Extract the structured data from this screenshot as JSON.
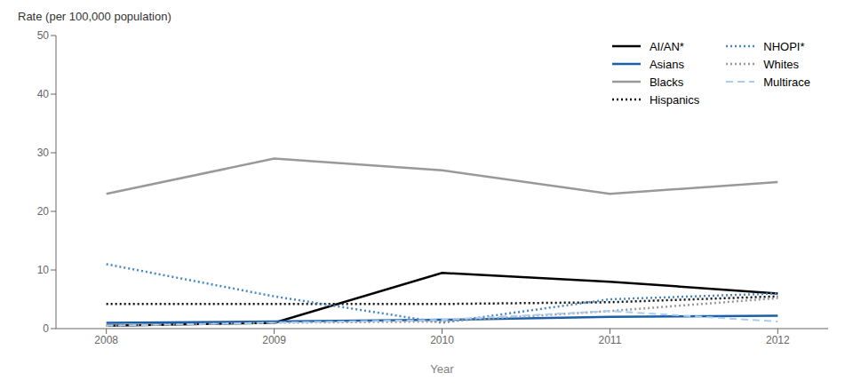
{
  "chart_data": {
    "type": "line",
    "xlabel": "Year",
    "ylabel": "Rate (per 100,000 population)",
    "x": [
      2008,
      2009,
      2010,
      2011,
      2012
    ],
    "xlim": [
      2007.7,
      2012.3
    ],
    "xticks": [
      2008,
      2009,
      2010,
      2011,
      2012
    ],
    "ylim": [
      0,
      50
    ],
    "yticks": [
      0,
      10,
      20,
      30,
      40,
      50
    ],
    "grid": false,
    "legend": "upper right",
    "series": [
      {
        "name": "AI/AN*",
        "color": "#000000",
        "line_style": "solid",
        "values": [
          0.5,
          1.0,
          9.5,
          8.0,
          6.0
        ]
      },
      {
        "name": "Asians",
        "color": "#1a5fa8",
        "line_style": "solid",
        "values": [
          1.0,
          1.2,
          1.5,
          2.0,
          2.2
        ]
      },
      {
        "name": "Blacks",
        "color": "#999999",
        "line_style": "solid",
        "values": [
          23.0,
          29.0,
          27.0,
          23.0,
          25.0
        ]
      },
      {
        "name": "Hispanics",
        "color": "#111111",
        "line_style": "dotted",
        "values": [
          4.2,
          4.2,
          4.2,
          4.5,
          5.5
        ]
      },
      {
        "name": "NHOPI*",
        "color": "#4488cc",
        "line_style": "dotted",
        "values": [
          11.0,
          5.5,
          1.0,
          5.0,
          6.0
        ]
      },
      {
        "name": "Whites",
        "color": "#999999",
        "line_style": "dotted",
        "values": [
          0.5,
          1.0,
          1.2,
          3.0,
          5.2
        ]
      },
      {
        "name": "Multirace",
        "color": "#aaccee",
        "line_style": "dashed",
        "values": [
          0.5,
          1.0,
          1.5,
          3.0,
          1.2
        ]
      }
    ]
  }
}
